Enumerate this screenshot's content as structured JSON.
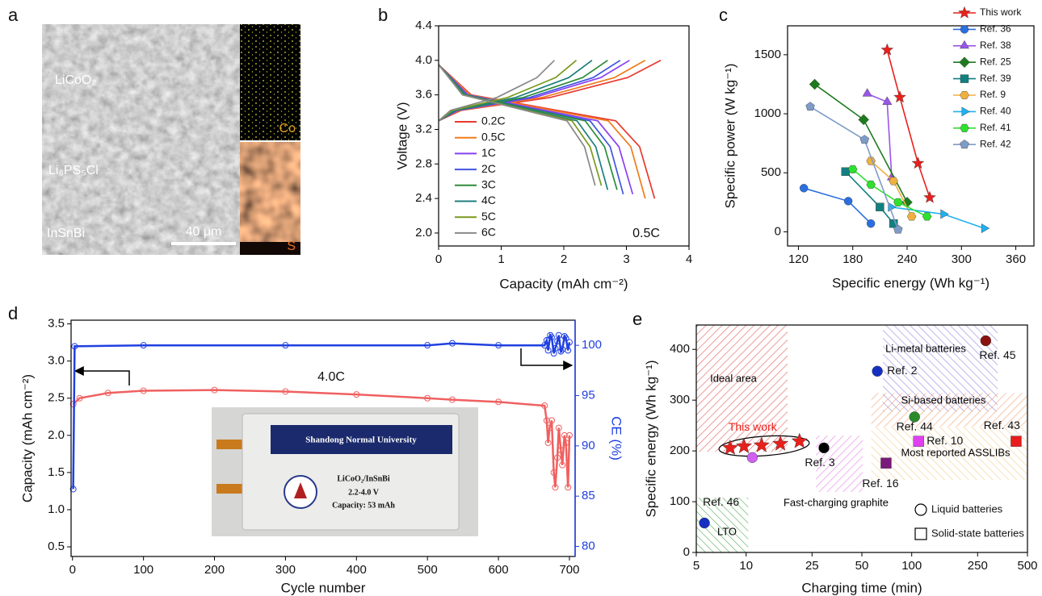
{
  "panel_labels": [
    "a",
    "b",
    "c",
    "d",
    "e"
  ],
  "figure_a": {
    "layers": [
      "LiCoO₂",
      "Li₆PS₅Cl",
      "InSnBi"
    ],
    "scale_bar": "40 μm",
    "maps": [
      "Co",
      "S"
    ]
  },
  "photo_d": {
    "banner": "Shandong Normal University",
    "lines": [
      "LiCoO₂/InSnBi",
      "2.2-4.0 V",
      "Capacity: 53 mAh"
    ]
  },
  "chart_data": [
    {
      "type": "line",
      "xlabel": "Capacity (mAh cm⁻²)",
      "ylabel": "Voltage (V)",
      "xlim": [
        0,
        4
      ],
      "ylim": [
        1.85,
        4.4
      ],
      "xticks": [
        0,
        1,
        2,
        3,
        4
      ],
      "yticks": [
        {
          "value": 2.0,
          "label": "2.0"
        },
        2.4,
        2.8,
        3.2,
        3.6,
        {
          "value": 4.0,
          "label": "4.0"
        },
        4.4
      ],
      "annotation": "0.5C",
      "legend": "lower left",
      "series": [
        {
          "name": "0.2C",
          "color": "#e8392f",
          "x": [
            0,
            0.52,
            1.9,
            2.83,
            3.21,
            3.45,
            null,
            0,
            0.36,
            1.78,
            3.02,
            3.55
          ],
          "values": [
            3.95,
            3.6,
            3.42,
            3.3,
            3.0,
            2.4,
            null,
            3.3,
            3.42,
            3.57,
            3.8,
            4.0
          ]
        },
        {
          "name": "0.5C",
          "color": "#f07c1c",
          "x": [
            0,
            0.5,
            1.82,
            2.71,
            3.07,
            3.3,
            null,
            0,
            0.33,
            1.65,
            2.81,
            3.3
          ],
          "values": [
            3.95,
            3.6,
            3.42,
            3.3,
            3.0,
            2.4,
            null,
            3.3,
            3.42,
            3.57,
            3.8,
            4.0
          ]
        },
        {
          "name": "1C",
          "color": "#8a3ff2",
          "x": [
            0,
            0.47,
            1.71,
            2.54,
            2.88,
            3.1,
            null,
            0,
            0.31,
            1.53,
            2.59,
            3.05
          ],
          "values": [
            3.95,
            3.6,
            3.42,
            3.3,
            3.0,
            2.45,
            null,
            3.3,
            3.42,
            3.57,
            3.8,
            4.0
          ]
        },
        {
          "name": "2C",
          "color": "#3f55e0",
          "x": [
            0,
            0.44,
            1.62,
            2.42,
            2.74,
            2.95,
            null,
            0,
            0.29,
            1.45,
            2.47,
            2.9
          ],
          "values": [
            3.95,
            3.6,
            3.42,
            3.3,
            3.0,
            2.45,
            null,
            3.3,
            3.42,
            3.57,
            3.8,
            4.0
          ]
        },
        {
          "name": "3C",
          "color": "#2e8b3a",
          "x": [
            0,
            0.43,
            1.57,
            2.34,
            2.65,
            2.85,
            null,
            0,
            0.27,
            1.35,
            2.3,
            2.7
          ],
          "values": [
            3.95,
            3.6,
            3.42,
            3.3,
            3.0,
            2.5,
            null,
            3.3,
            3.42,
            3.57,
            3.8,
            4.0
          ]
        },
        {
          "name": "4C",
          "color": "#1f7f7f",
          "x": [
            0,
            0.41,
            1.49,
            2.21,
            2.51,
            2.7,
            null,
            0,
            0.25,
            1.23,
            2.08,
            2.45
          ],
          "values": [
            3.95,
            3.6,
            3.42,
            3.3,
            3.0,
            2.5,
            null,
            3.3,
            3.42,
            3.57,
            3.8,
            4.0
          ]
        },
        {
          "name": "5C",
          "color": "#7a9a1e",
          "x": [
            0,
            0.39,
            1.43,
            2.13,
            2.42,
            2.6,
            null,
            0,
            0.22,
            1.1,
            1.87,
            2.2
          ],
          "values": [
            3.95,
            3.6,
            3.42,
            3.3,
            3.0,
            2.55,
            null,
            3.3,
            3.42,
            3.57,
            3.8,
            4.0
          ]
        },
        {
          "name": "6C",
          "color": "#888888",
          "x": [
            0,
            0.38,
            1.38,
            2.05,
            2.33,
            2.5,
            null,
            0,
            0.19,
            0.93,
            1.57,
            1.85
          ],
          "values": [
            3.95,
            3.6,
            3.42,
            3.3,
            3.0,
            2.55,
            null,
            3.3,
            3.42,
            3.57,
            3.8,
            4.0
          ]
        }
      ]
    },
    {
      "type": "scatter",
      "xlabel": "Specific energy (Wh kg⁻¹)",
      "ylabel": "Specific power (W kg⁻¹)",
      "xlim": [
        108,
        380
      ],
      "ylim": [
        -120,
        1745
      ],
      "xticks": [
        120,
        180,
        240,
        300,
        360
      ],
      "yticks": [
        0,
        500,
        1000,
        1500
      ],
      "lines": true,
      "legend": "upper right",
      "series": [
        {
          "name": "This work",
          "color": "#e8201c",
          "marker": "star",
          "x": [
            218,
            232,
            252,
            265
          ],
          "values": [
            1540,
            1140,
            580,
            290
          ]
        },
        {
          "name": "Ref. 36",
          "color": "#2a6fe0",
          "marker": "circle",
          "x": [
            126,
            175,
            200
          ],
          "values": [
            370,
            260,
            70
          ]
        },
        {
          "name": "Ref. 38",
          "color": "#9955e8",
          "marker": "triangle-up",
          "x": [
            196,
            218,
            223
          ],
          "values": [
            1170,
            1100,
            460
          ]
        },
        {
          "name": "Ref. 25",
          "color": "#1e7a1e",
          "marker": "diamond",
          "x": [
            138,
            192,
            240
          ],
          "values": [
            1250,
            950,
            250
          ]
        },
        {
          "name": "Ref. 39",
          "color": "#128080",
          "marker": "square",
          "x": [
            172,
            210,
            225
          ],
          "values": [
            510,
            210,
            70
          ]
        },
        {
          "name": "Ref. 9",
          "color": "#f0b040",
          "marker": "hexagon",
          "x": [
            200,
            225,
            245
          ],
          "values": [
            600,
            430,
            130
          ]
        },
        {
          "name": "Ref. 40",
          "color": "#20b0f0",
          "marker": "triangle-right",
          "x": [
            222,
            280,
            325
          ],
          "values": [
            210,
            150,
            30
          ]
        },
        {
          "name": "Ref. 41",
          "color": "#30e030",
          "marker": "hexagon",
          "x": [
            180,
            200,
            230,
            262
          ],
          "values": [
            530,
            400,
            250,
            130
          ]
        },
        {
          "name": "Ref. 42",
          "color": "#7e9cc8",
          "marker": "pentagon",
          "x": [
            133,
            193,
            230
          ],
          "values": [
            1060,
            780,
            20
          ]
        }
      ]
    },
    {
      "type": "line",
      "xlabel": "Cycle number",
      "ylabel": "Capacity (mAh cm⁻²)",
      "y2label": "CE (%)",
      "xlim": [
        -2,
        708
      ],
      "ylim": [
        0.37,
        3.55
      ],
      "y2lim": [
        79,
        102.5
      ],
      "xticks": [
        0,
        100,
        200,
        300,
        400,
        500,
        600,
        700
      ],
      "yticks": [
        0.5,
        {
          "value": 1.0,
          "label": "1.0"
        },
        1.5,
        {
          "value": 2.0,
          "label": "2.0"
        },
        2.5,
        {
          "value": 3.0,
          "label": "3.0"
        },
        3.5
      ],
      "y2ticks": [
        80,
        85,
        90,
        95,
        100
      ],
      "annotation": "4.0C",
      "markers": true,
      "series": [
        {
          "color": "#f06060",
          "x": [
            1,
            10,
            50,
            100,
            200,
            300,
            400,
            500,
            535,
            600,
            665,
            668,
            670,
            672,
            675,
            678,
            680,
            683,
            685,
            688,
            690,
            693,
            695,
            698,
            700
          ],
          "values": [
            2.42,
            2.5,
            2.57,
            2.6,
            2.61,
            2.59,
            2.55,
            2.5,
            2.48,
            2.45,
            2.4,
            2.2,
            1.9,
            2.1,
            2.2,
            1.5,
            1.3,
            1.7,
            2.1,
            1.8,
            1.6,
            2.0,
            1.9,
            1.3,
            2.0
          ]
        },
        {
          "color": "#2040e0",
          "axis": "y2",
          "x": [
            1,
            3,
            100,
            300,
            500,
            535,
            600,
            665,
            668,
            670,
            673,
            675,
            678,
            680,
            683,
            685,
            688,
            690,
            693,
            695,
            698,
            700
          ],
          "values": [
            85.7,
            99.9,
            100,
            100,
            100,
            100.2,
            100,
            100,
            100.5,
            99.5,
            101,
            100.8,
            99.2,
            99.7,
            100.4,
            101,
            99.4,
            99.6,
            100.9,
            100.7,
            99.5,
            100.3
          ]
        }
      ]
    },
    {
      "type": "scatter",
      "xscale": "log",
      "xlabel": "Charging time (min)",
      "ylabel": "Specific energy (Wh kg⁻¹)",
      "xlim": [
        5,
        500
      ],
      "ylim": [
        0,
        448
      ],
      "xticks": [
        5,
        10,
        25,
        50,
        100,
        250,
        500
      ],
      "yticks": [
        0,
        100,
        200,
        300,
        400
      ],
      "regions": [
        {
          "label": "Ideal area",
          "color": "#e03030",
          "x": [
            5,
            17.8
          ],
          "y": [
            198,
            448
          ]
        },
        {
          "label": "Li-metal batteries",
          "color": "#7a6ae0",
          "x": [
            67,
            330
          ],
          "y": [
            278,
            448
          ]
        },
        {
          "label": "Si-based batteries",
          "color": "#f08a50",
          "x": [
            57,
            500
          ],
          "y": [
            248,
            314
          ]
        },
        {
          "label": "Most reported ASSLIBs",
          "color": "#f0c070",
          "x": [
            57,
            500
          ],
          "y": [
            143,
            248
          ]
        },
        {
          "label": "Fast-charging graphite",
          "color": "#e060e0",
          "x": [
            26.4,
            50.6
          ],
          "y": [
            119,
            230
          ]
        },
        {
          "label": "LTO",
          "color": "#2a9a2a",
          "x": [
            5,
            10.3
          ],
          "y": [
            0,
            108
          ]
        }
      ],
      "series": [
        {
          "name": "Ref. 46",
          "color": "#1530c0",
          "marker": "circle",
          "x": [
            5.6
          ],
          "values": [
            58
          ]
        },
        {
          "name": "This work",
          "color": "#e8201c",
          "marker": "star",
          "x": [
            8.0,
            9.7,
            12.4,
            16.1,
            21.0
          ],
          "values": [
            206,
            209,
            211,
            214,
            219
          ]
        },
        {
          "color": "#d060f0",
          "marker": "circle",
          "x": [
            10.9
          ],
          "values": [
            187
          ]
        },
        {
          "name": "Ref. 3",
          "color": "#000000",
          "marker": "circle",
          "x": [
            29.5
          ],
          "values": [
            206
          ]
        },
        {
          "name": "Ref. 16",
          "color": "#7a1a7a",
          "marker": "square",
          "x": [
            70
          ],
          "values": [
            176
          ]
        },
        {
          "name": "Ref. 44",
          "color": "#2a8a2a",
          "marker": "circle",
          "x": [
            104
          ],
          "values": [
            267
          ]
        },
        {
          "name": "Ref. 2",
          "color": "#1530c0",
          "marker": "circle",
          "x": [
            62
          ],
          "values": [
            357
          ]
        },
        {
          "name": "Ref. 45",
          "color": "#8a1010",
          "marker": "circle",
          "x": [
            280
          ],
          "values": [
            417
          ]
        },
        {
          "name": "Ref. 10",
          "color": "#e040f0",
          "marker": "square",
          "x": [
            110
          ],
          "values": [
            219
          ]
        },
        {
          "name": "Ref. 43",
          "color": "#e81c1c",
          "marker": "square",
          "x": [
            427
          ],
          "values": [
            219
          ]
        }
      ],
      "legend": [
        {
          "label": "Liquid batteries",
          "marker": "circle"
        },
        {
          "label": "Solid-state batteries",
          "marker": "square"
        }
      ]
    }
  ]
}
